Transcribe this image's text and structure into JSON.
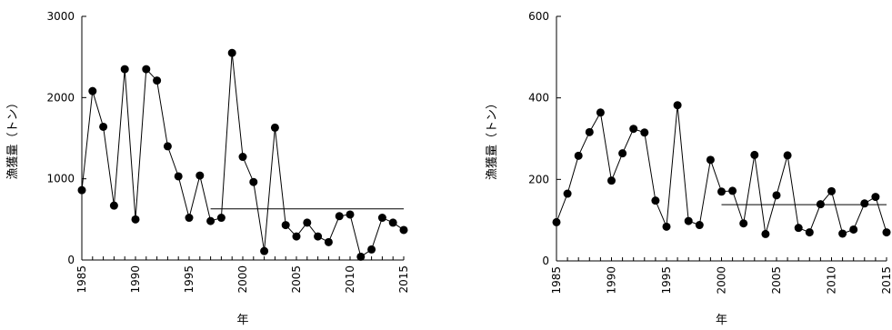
{
  "chart_data": [
    {
      "type": "line",
      "xlabel": "年",
      "ylabel": "漁獲量（トン）",
      "xlim": [
        1985,
        2015
      ],
      "ylim": [
        0,
        3000
      ],
      "xticks": [
        1985,
        1990,
        1995,
        2000,
        2005,
        2010,
        2015
      ],
      "yticks": [
        0,
        1000,
        2000,
        3000
      ],
      "grid": false,
      "series": [
        {
          "x": [
            1985,
            1986,
            1987,
            1988,
            1989,
            1990,
            1991,
            1992,
            1993,
            1994,
            1995,
            1996,
            1997,
            1998,
            1999,
            2000,
            2001,
            2002,
            2003,
            2004,
            2005,
            2006,
            2007,
            2008,
            2009,
            2010,
            2011,
            2012,
            2013,
            2014,
            2015
          ],
          "values": [
            860,
            2080,
            1640,
            670,
            2350,
            500,
            2350,
            2210,
            1400,
            1030,
            520,
            1040,
            480,
            520,
            2550,
            1270,
            960,
            110,
            1630,
            430,
            290,
            460,
            290,
            220,
            540,
            560,
            40,
            130,
            520,
            460,
            370
          ]
        }
      ],
      "reference_line": {
        "x_start": 1997,
        "x_end": 2015,
        "value": 630
      }
    },
    {
      "type": "line",
      "xlabel": "年",
      "ylabel": "漁獲量（トン）",
      "xlim": [
        1985,
        2015
      ],
      "ylim": [
        0,
        600
      ],
      "xticks": [
        1985,
        1990,
        1995,
        2000,
        2005,
        2010,
        2015
      ],
      "yticks": [
        0,
        200,
        400,
        600
      ],
      "grid": false,
      "series": [
        {
          "x": [
            1985,
            1986,
            1987,
            1988,
            1989,
            1990,
            1991,
            1992,
            1993,
            1994,
            1995,
            1996,
            1997,
            1998,
            1999,
            2000,
            2001,
            2002,
            2003,
            2004,
            2005,
            2006,
            2007,
            2008,
            2009,
            2010,
            2011,
            2012,
            2013,
            2014,
            2015
          ],
          "values": [
            95,
            165,
            258,
            316,
            364,
            197,
            264,
            324,
            315,
            148,
            84,
            382,
            98,
            88,
            248,
            170,
            172,
            92,
            260,
            66,
            161,
            259,
            81,
            70,
            139,
            171,
            67,
            77,
            141,
            157,
            70
          ]
        }
      ],
      "reference_line": {
        "x_start": 2000,
        "x_end": 2015,
        "value": 138
      }
    }
  ]
}
